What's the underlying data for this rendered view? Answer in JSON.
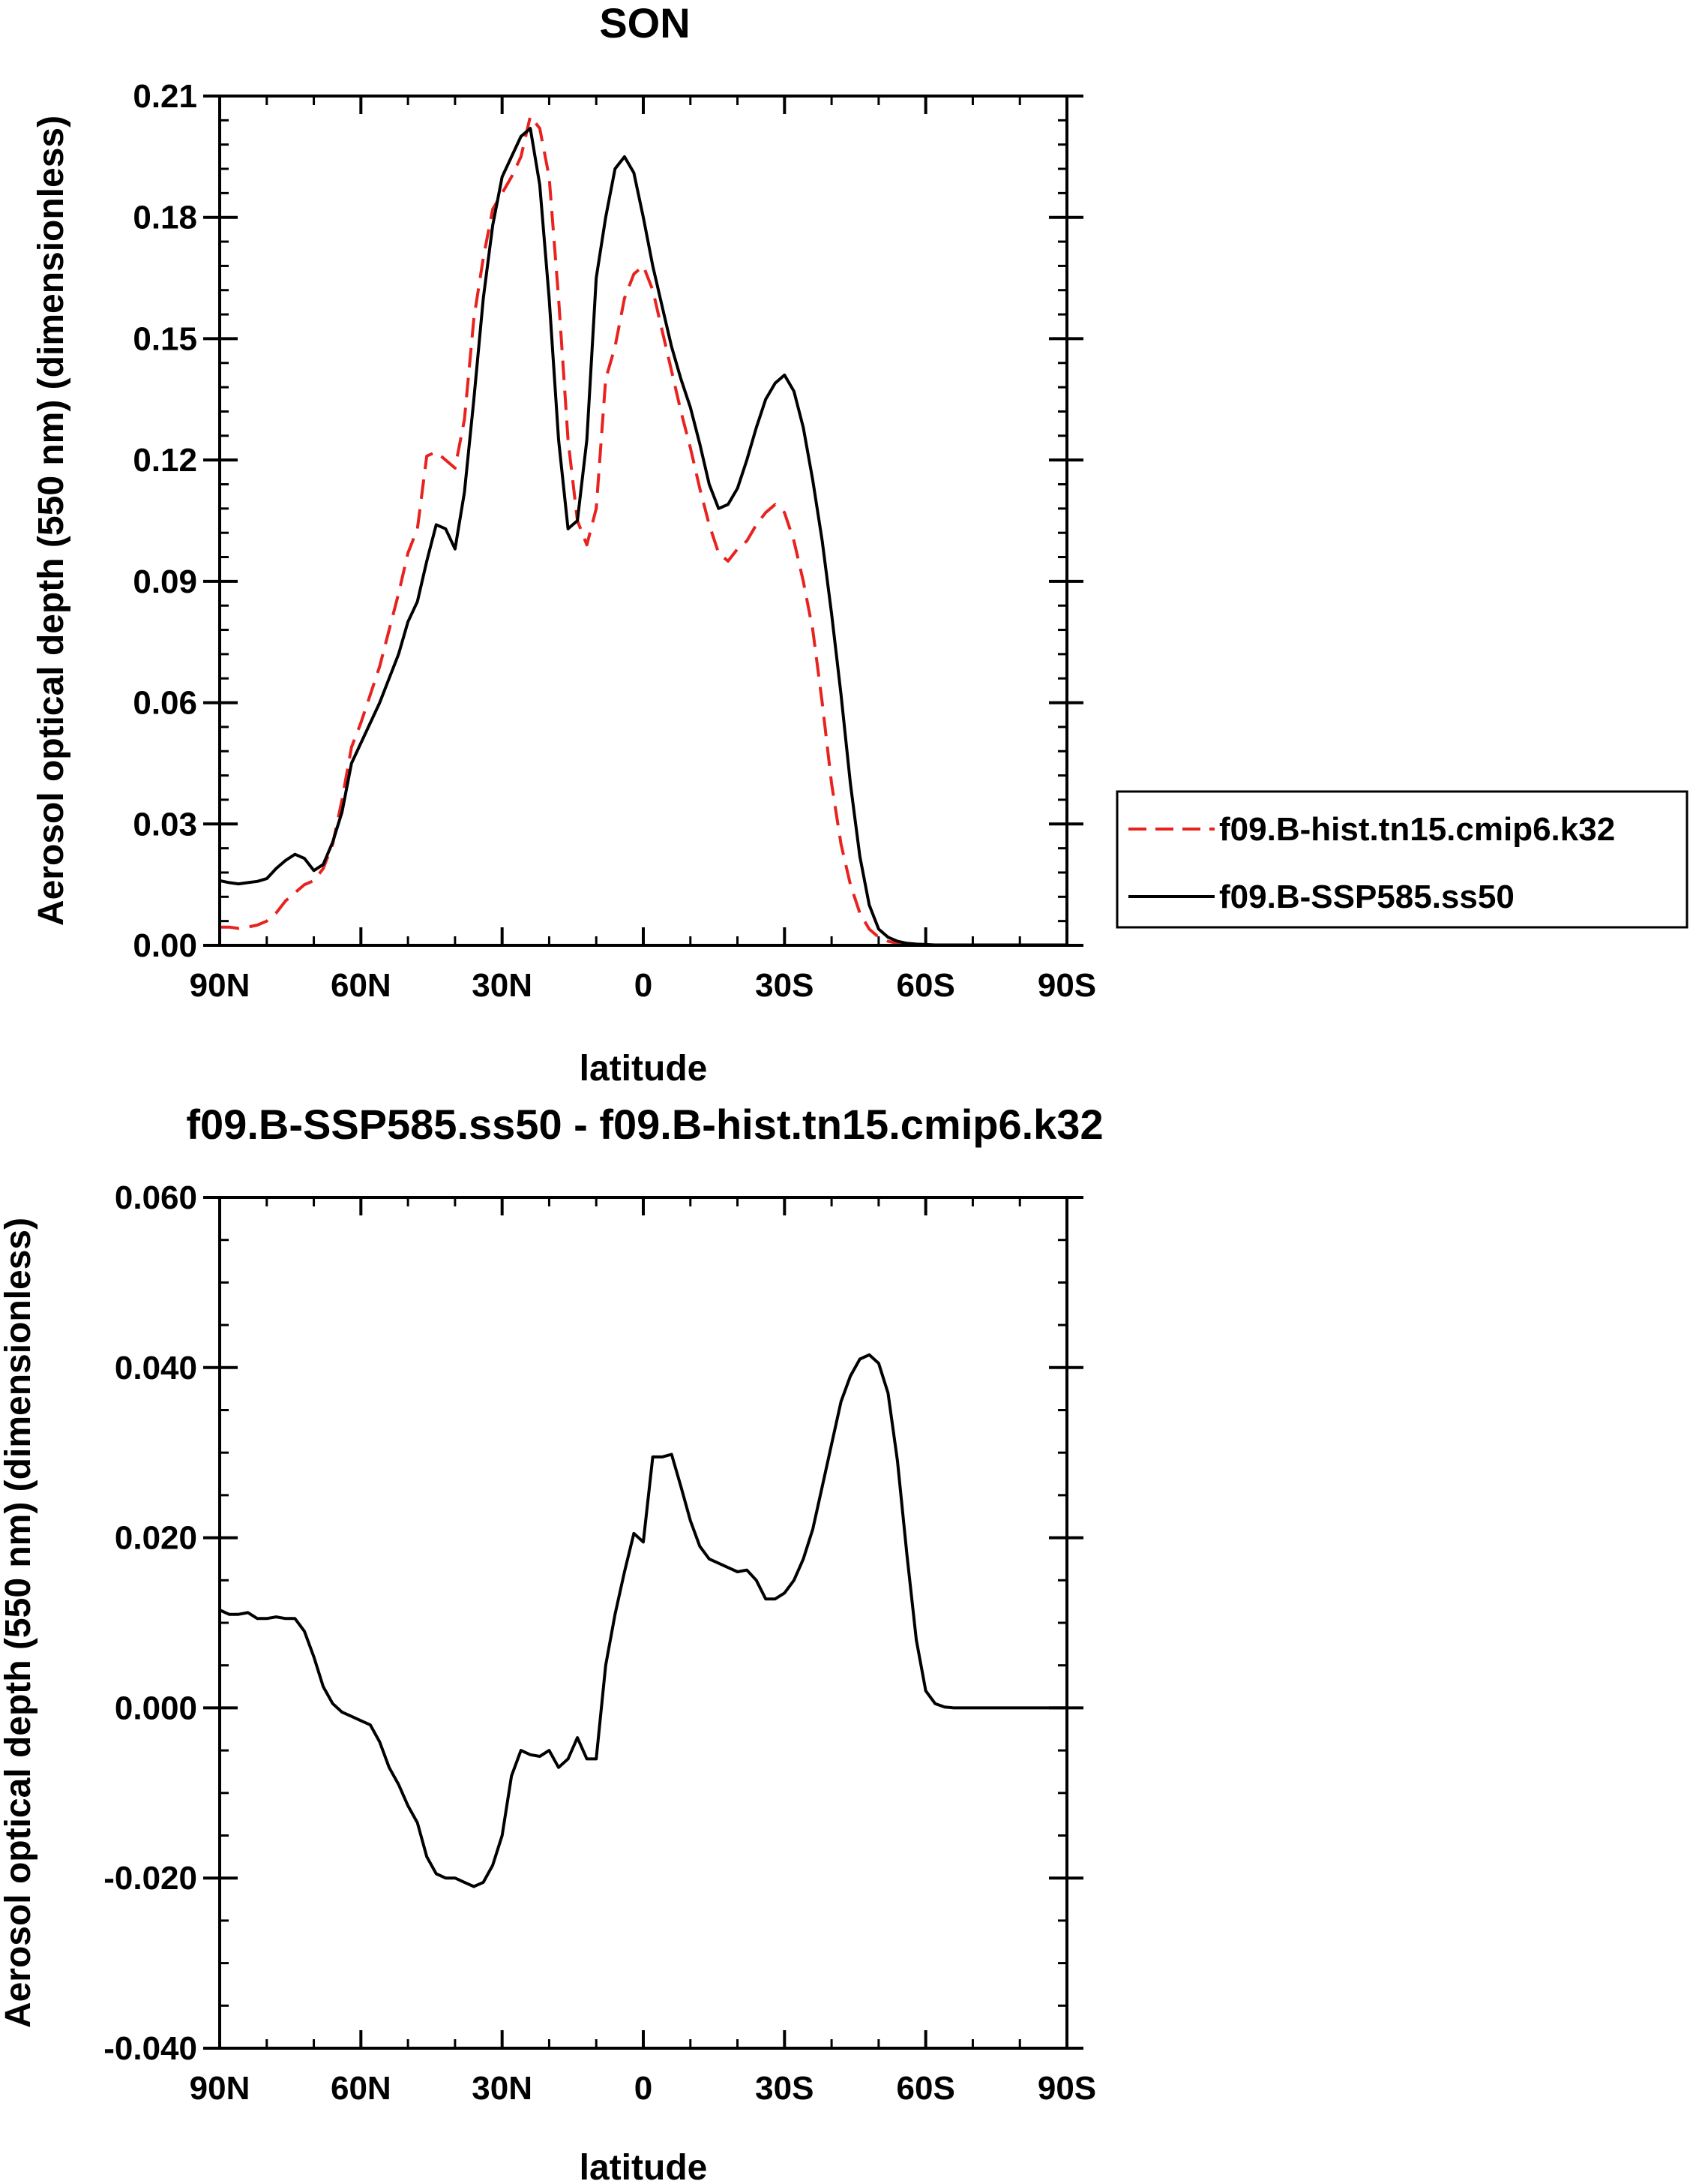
{
  "chart_data": [
    {
      "type": "line",
      "title": "SON",
      "xlabel": "latitude",
      "ylabel": "Aerosol optical depth (550 nm) (dimensionless)",
      "x_range": [
        90,
        -90
      ],
      "x_ticks": [
        90,
        60,
        30,
        0,
        -30,
        -60,
        -90
      ],
      "x_tick_labels": [
        "90N",
        "60N",
        "30N",
        "0",
        "30S",
        "60S",
        "90S"
      ],
      "ylim": [
        0,
        0.21
      ],
      "y_ticks": [
        0,
        0.03,
        0.06,
        0.09,
        0.12,
        0.15,
        0.18,
        0.21
      ],
      "y_tick_labels": [
        "0.00",
        "0.03",
        "0.06",
        "0.09",
        "0.12",
        "0.15",
        "0.18",
        "0.21"
      ],
      "legend_position": "right",
      "series": [
        {
          "name": "f09.B-hist.tn15.cmip6.k32",
          "color": "#e8231f",
          "dash": "dashed",
          "x": [
            90,
            88,
            86,
            84,
            82,
            80,
            78,
            76,
            74,
            72,
            70,
            68,
            66,
            64,
            62,
            60,
            58,
            56,
            54,
            52,
            50,
            48,
            46,
            44,
            42,
            40,
            38,
            36,
            34,
            32,
            30,
            28,
            26,
            24,
            22,
            20,
            18,
            16,
            14,
            12,
            10,
            8,
            6,
            4,
            2,
            0,
            -2,
            -4,
            -6,
            -8,
            -10,
            -12,
            -14,
            -16,
            -18,
            -20,
            -22,
            -24,
            -26,
            -28,
            -30,
            -32,
            -34,
            -36,
            -38,
            -40,
            -42,
            -44,
            -46,
            -48,
            -50,
            -52,
            -54,
            -56,
            -58,
            -60,
            -62,
            -64,
            -66,
            -68,
            -70,
            -72,
            -74,
            -76,
            -78,
            -80,
            -84,
            -90
          ],
          "values": [
            0.0045,
            0.0045,
            0.0042,
            0.0045,
            0.005,
            0.006,
            0.008,
            0.011,
            0.013,
            0.015,
            0.016,
            0.019,
            0.025,
            0.036,
            0.049,
            0.055,
            0.062,
            0.069,
            0.078,
            0.087,
            0.097,
            0.103,
            0.121,
            0.122,
            0.12,
            0.118,
            0.13,
            0.155,
            0.17,
            0.182,
            0.186,
            0.19,
            0.195,
            0.205,
            0.202,
            0.19,
            0.16,
            0.125,
            0.105,
            0.099,
            0.108,
            0.14,
            0.148,
            0.16,
            0.166,
            0.168,
            0.162,
            0.152,
            0.142,
            0.132,
            0.123,
            0.113,
            0.104,
            0.097,
            0.095,
            0.098,
            0.1,
            0.104,
            0.107,
            0.109,
            0.107,
            0.1,
            0.09,
            0.078,
            0.06,
            0.04,
            0.025,
            0.015,
            0.008,
            0.004,
            0.002,
            0.001,
            0.0005,
            0.0003,
            0.0002,
            0.0001,
            0.0001,
            0.0001,
            0.0001,
            0.0001,
            0.0001,
            0.0001,
            0.0001,
            0.0001,
            0.0001,
            0.0001,
            0.0001,
            0.0001
          ]
        },
        {
          "name": "f09.B-SSP585.ss50",
          "color": "#000000",
          "dash": "solid",
          "x": [
            90,
            88,
            86,
            84,
            82,
            80,
            78,
            76,
            74,
            72,
            70,
            68,
            66,
            64,
            62,
            60,
            58,
            56,
            54,
            52,
            50,
            48,
            46,
            44,
            42,
            40,
            38,
            36,
            34,
            32,
            30,
            28,
            26,
            24,
            22,
            20,
            18,
            16,
            14,
            12,
            10,
            8,
            6,
            4,
            2,
            0,
            -2,
            -4,
            -6,
            -8,
            -10,
            -12,
            -14,
            -16,
            -18,
            -20,
            -22,
            -24,
            -26,
            -28,
            -30,
            -32,
            -34,
            -36,
            -38,
            -40,
            -42,
            -44,
            -46,
            -48,
            -50,
            -52,
            -54,
            -56,
            -58,
            -60,
            -62,
            -64,
            -66,
            -68,
            -70,
            -72,
            -74,
            -76,
            -78,
            -80,
            -84,
            -90
          ],
          "values": [
            0.016,
            0.0155,
            0.0152,
            0.0155,
            0.0158,
            0.0165,
            0.019,
            0.021,
            0.0225,
            0.0215,
            0.0185,
            0.02,
            0.0255,
            0.033,
            0.045,
            0.05,
            0.055,
            0.06,
            0.066,
            0.072,
            0.08,
            0.085,
            0.095,
            0.104,
            0.103,
            0.098,
            0.112,
            0.135,
            0.16,
            0.178,
            0.19,
            0.195,
            0.2,
            0.202,
            0.188,
            0.16,
            0.125,
            0.103,
            0.105,
            0.125,
            0.165,
            0.18,
            0.192,
            0.195,
            0.191,
            0.18,
            0.168,
            0.158,
            0.148,
            0.14,
            0.133,
            0.124,
            0.114,
            0.108,
            0.109,
            0.113,
            0.12,
            0.128,
            0.135,
            0.139,
            0.141,
            0.137,
            0.128,
            0.115,
            0.1,
            0.082,
            0.062,
            0.04,
            0.022,
            0.01,
            0.004,
            0.002,
            0.001,
            0.0005,
            0.0003,
            0.0002,
            0.0001,
            0.0001,
            0.0001,
            0.0001,
            0.0001,
            0.0001,
            0.0001,
            0.0001,
            0.0001,
            0.0001,
            0.0001,
            0.0001
          ]
        }
      ]
    },
    {
      "type": "line",
      "title": "f09.B-SSP585.ss50 - f09.B-hist.tn15.cmip6.k32",
      "xlabel": "latitude",
      "ylabel": "Aerosol optical depth (550 nm) (dimensionless)",
      "x_range": [
        90,
        -90
      ],
      "x_ticks": [
        90,
        60,
        30,
        0,
        -30,
        -60,
        -90
      ],
      "x_tick_labels": [
        "90N",
        "60N",
        "30N",
        "0",
        "30S",
        "60S",
        "90S"
      ],
      "ylim": [
        -0.04,
        0.06
      ],
      "y_ticks": [
        -0.04,
        -0.02,
        0,
        0.02,
        0.04,
        0.06
      ],
      "y_tick_labels": [
        "-0.040",
        "-0.020",
        "0.000",
        "0.020",
        "0.040",
        "0.060"
      ],
      "series": [
        {
          "color": "#000000",
          "dash": "solid",
          "x": [
            90,
            88,
            86,
            84,
            82,
            80,
            78,
            76,
            74,
            72,
            70,
            68,
            66,
            64,
            62,
            60,
            58,
            56,
            54,
            52,
            50,
            48,
            46,
            44,
            42,
            40,
            38,
            36,
            34,
            32,
            30,
            28,
            26,
            24,
            22,
            20,
            18,
            16,
            14,
            12,
            10,
            8,
            6,
            4,
            2,
            0,
            -2,
            -4,
            -6,
            -8,
            -10,
            -12,
            -14,
            -16,
            -18,
            -20,
            -22,
            -24,
            -26,
            -28,
            -30,
            -32,
            -34,
            -36,
            -38,
            -40,
            -42,
            -44,
            -46,
            -48,
            -50,
            -52,
            -54,
            -56,
            -58,
            -60,
            -62,
            -64,
            -66,
            -68,
            -70,
            -72,
            -74,
            -76,
            -78,
            -80,
            -84,
            -90
          ],
          "values": [
            0.0115,
            0.011,
            0.011,
            0.0112,
            0.0105,
            0.0105,
            0.0107,
            0.0105,
            0.0105,
            0.009,
            0.006,
            0.0025,
            0.0005,
            -0.0005,
            -0.001,
            -0.0015,
            -0.002,
            -0.004,
            -0.007,
            -0.009,
            -0.0115,
            -0.0135,
            -0.0175,
            -0.0195,
            -0.02,
            -0.02,
            -0.0205,
            -0.021,
            -0.0205,
            -0.0185,
            -0.015,
            -0.008,
            -0.005,
            -0.0055,
            -0.0057,
            -0.005,
            -0.007,
            -0.006,
            -0.0035,
            -0.006,
            -0.006,
            0.005,
            0.011,
            0.016,
            0.0205,
            0.0195,
            0.0295,
            0.0295,
            0.0298,
            0.026,
            0.022,
            0.019,
            0.0175,
            0.017,
            0.0165,
            0.016,
            0.0162,
            0.015,
            0.0128,
            0.0128,
            0.0135,
            0.015,
            0.0175,
            0.021,
            0.026,
            0.031,
            0.036,
            0.039,
            0.041,
            0.0415,
            0.0405,
            0.037,
            0.029,
            0.018,
            0.008,
            0.002,
            0.0005,
            0.0001,
            0,
            0,
            0,
            0,
            0,
            0,
            0,
            0,
            0,
            0
          ]
        }
      ]
    }
  ]
}
